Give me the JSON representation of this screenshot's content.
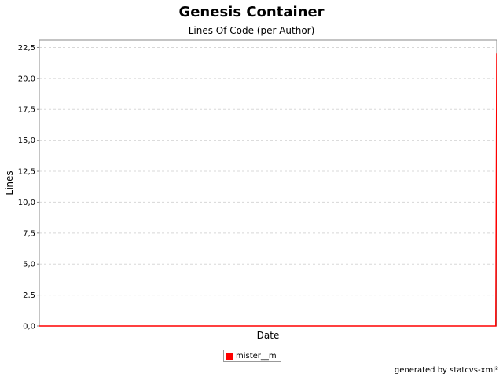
{
  "chart_data": {
    "type": "line",
    "title": "Genesis Container",
    "subtitle": "Lines Of Code (per Author)",
    "xlabel": "Date",
    "ylabel": "Lines",
    "ylim": [
      0,
      23.1
    ],
    "y_ticks": [
      "0,0",
      "2,5",
      "5,0",
      "7,5",
      "10,0",
      "12,5",
      "15,0",
      "17,5",
      "20,0",
      "22,5"
    ],
    "grid": true,
    "legend_position": "bottom",
    "x": [
      0,
      0.998,
      1
    ],
    "series": [
      {
        "name": "mister__m",
        "color": "#ff0000",
        "values": [
          0,
          0,
          22
        ]
      }
    ]
  },
  "footer": "generated by statcvs-xml²"
}
